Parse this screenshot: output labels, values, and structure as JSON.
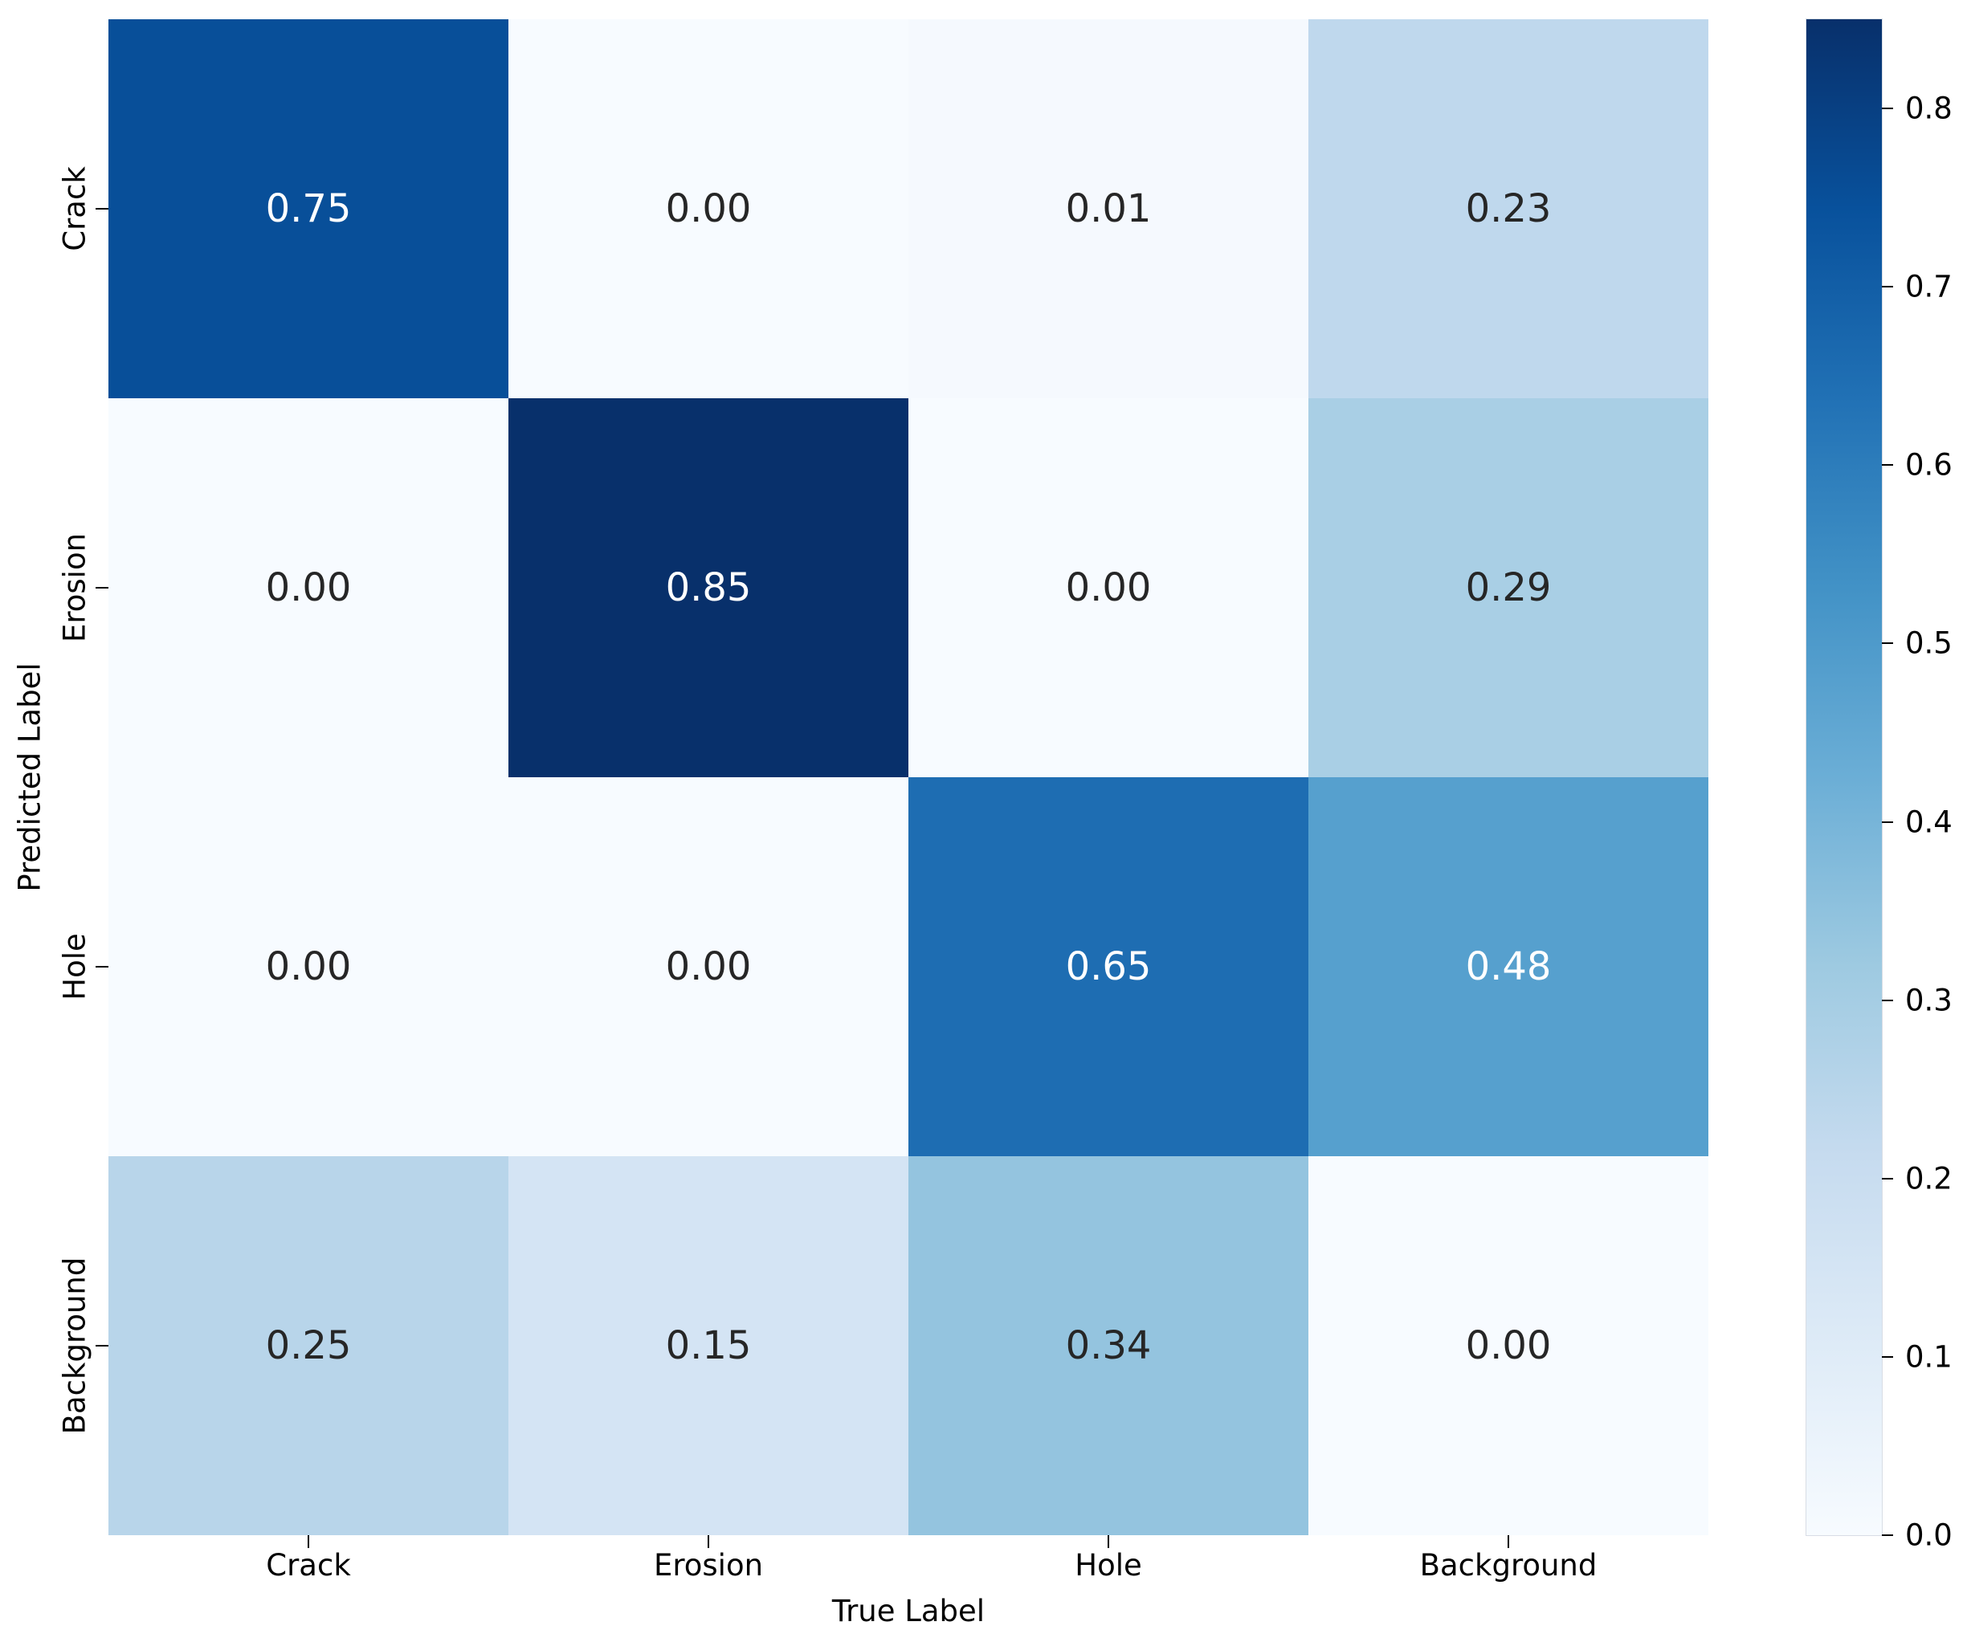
{
  "chart_data": {
    "type": "heatmap",
    "title": "",
    "xlabel": "True Label",
    "ylabel": "Predicted Label",
    "x_categories": [
      "Crack",
      "Erosion",
      "Hole",
      "Background"
    ],
    "y_categories": [
      "Crack",
      "Erosion",
      "Hole",
      "Background"
    ],
    "values": [
      [
        0.75,
        0.0,
        0.01,
        0.23
      ],
      [
        0.0,
        0.85,
        0.0,
        0.29
      ],
      [
        0.0,
        0.0,
        0.65,
        0.48
      ],
      [
        0.25,
        0.15,
        0.34,
        0.0
      ]
    ],
    "value_format": "0.00",
    "colormap": "Blues",
    "vmin": 0.0,
    "vmax": 0.85,
    "grid": false,
    "legend_position": "right-colorbar",
    "colorbar_ticks": [
      "0.0",
      "0.1",
      "0.2",
      "0.3",
      "0.4",
      "0.5",
      "0.6",
      "0.7",
      "0.8"
    ],
    "colorbar_tick_values": [
      0.0,
      0.1,
      0.2,
      0.3,
      0.4,
      0.5,
      0.6,
      0.7,
      0.8
    ]
  },
  "colors": {
    "background": "#ffffff",
    "annotation_light_text": "#ffffff",
    "annotation_dark_text": "#262626",
    "axis_text": "#000000",
    "colormap_min": "#f7fbff",
    "colormap_max": "#08306b"
  }
}
